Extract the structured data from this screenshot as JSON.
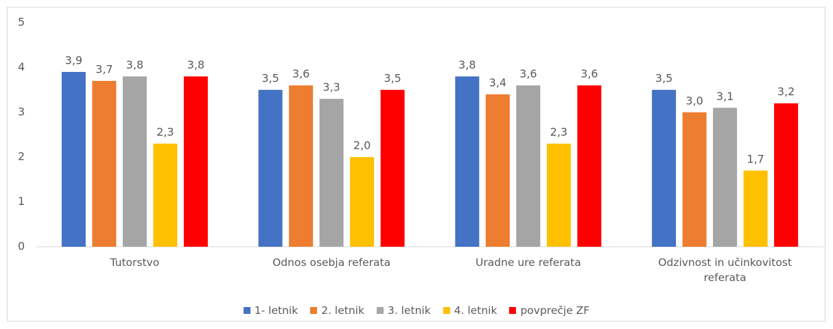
{
  "chart_data": {
    "type": "bar",
    "categories": [
      "Tutorstvo",
      "Odnos osebja referata",
      "Uradne ure referata",
      "Odzivnost in učinkovitost referata"
    ],
    "series": [
      {
        "name": "1- letnik",
        "color": "#4472c4",
        "values": [
          3.9,
          3.5,
          3.8,
          3.5
        ],
        "value_labels": [
          "3,9",
          "3,5",
          "3,8",
          "3,5"
        ]
      },
      {
        "name": "2. letnik",
        "color": "#ed7d31",
        "values": [
          3.7,
          3.6,
          3.4,
          3.0
        ],
        "value_labels": [
          "3,7",
          "3,6",
          "3,4",
          "3,0"
        ]
      },
      {
        "name": "3. letnik",
        "color": "#a5a5a5",
        "values": [
          3.8,
          3.3,
          3.6,
          3.1
        ],
        "value_labels": [
          "3,8",
          "3,3",
          "3,6",
          "3,1"
        ]
      },
      {
        "name": "4. letnik",
        "color": "#ffc000",
        "values": [
          2.3,
          2.0,
          2.3,
          1.7
        ],
        "value_labels": [
          "2,3",
          "2,0",
          "2,3",
          "1,7"
        ]
      },
      {
        "name": "povprečje ZF",
        "color": "#ff0000",
        "values": [
          3.8,
          3.5,
          3.6,
          3.2
        ],
        "value_labels": [
          "3,8",
          "3,5",
          "3,6",
          "3,2"
        ]
      }
    ],
    "ylim": [
      0,
      5
    ],
    "yticks": [
      0,
      1,
      2,
      3,
      4,
      5
    ],
    "grid": false,
    "legend": "bottom"
  }
}
